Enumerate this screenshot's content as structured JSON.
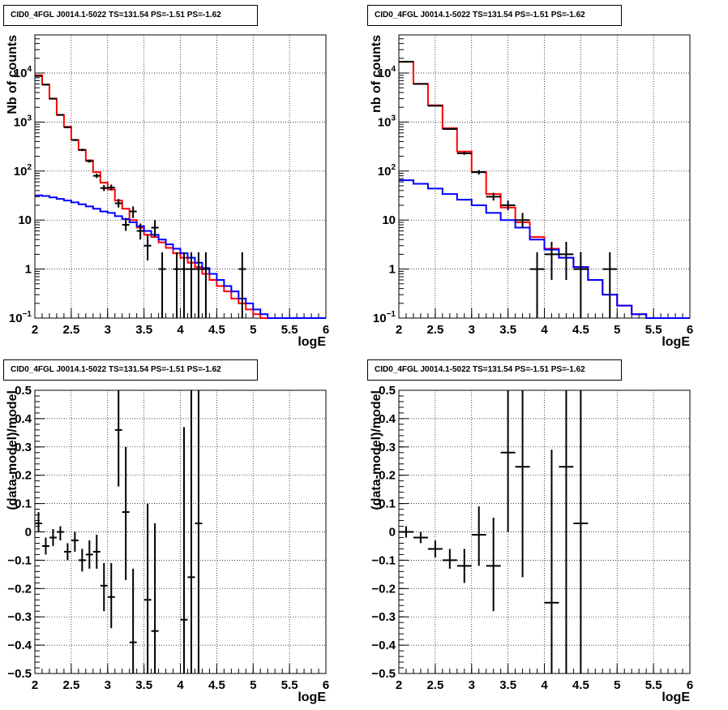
{
  "chart_data": [
    {
      "type": "line",
      "title": "CID0_4FGL J0014.1-5022 TS=131.54 PS=-1.51 PS=-1.62",
      "xlabel": "logE",
      "ylabel": "Nb of counts",
      "xlim": [
        2,
        6
      ],
      "ylim": [
        0.1,
        60000
      ],
      "y_log": true,
      "grid": true,
      "x_ticks": [
        "2",
        "2.5",
        "3",
        "3.5",
        "4",
        "4.5",
        "5",
        "5.5",
        "6"
      ],
      "y_ticks": [
        {
          "v": 0.1,
          "t": "10",
          "sup": "−1"
        },
        {
          "v": 1,
          "t": "1"
        },
        {
          "v": 10,
          "t": "10"
        },
        {
          "v": 100,
          "t": "10",
          "sup": "2"
        },
        {
          "v": 1000,
          "t": "10",
          "sup": "3"
        },
        {
          "v": 10000,
          "t": "10",
          "sup": "4"
        }
      ],
      "bin_edges": [
        2.0,
        2.1,
        2.2,
        2.3,
        2.4,
        2.5,
        2.6,
        2.7,
        2.8,
        2.9,
        3.0,
        3.1,
        3.2,
        3.3,
        3.4,
        3.5,
        3.6,
        3.7,
        3.8,
        3.9,
        4.0,
        4.1,
        4.2,
        4.3,
        4.4,
        4.5,
        4.6,
        4.7,
        4.8,
        4.9,
        5.0,
        5.1,
        5.2,
        5.3,
        5.4,
        5.5,
        5.6,
        5.7,
        5.8,
        5.9,
        6.0
      ],
      "series": [
        {
          "color": "#ff0000",
          "style": "step",
          "values": [
            9000,
            5800,
            3000,
            1400,
            800,
            430,
            270,
            165,
            95,
            58,
            42,
            25,
            17,
            10,
            7,
            5,
            4.5,
            3.5,
            2.7,
            2.1,
            1.7,
            1.35,
            1.1,
            0.8,
            0.6,
            0.45,
            0.35,
            0.25,
            0.2,
            0.15,
            0.12,
            0.1,
            0.1,
            0.1,
            0.1,
            0.1,
            0.1,
            0.1,
            0.1,
            0.1
          ]
        },
        {
          "color": "#0000ff",
          "style": "step",
          "values": [
            32,
            31,
            29,
            27,
            25,
            23,
            21,
            19,
            17,
            15,
            14,
            12,
            10.5,
            9,
            7.5,
            6,
            5,
            4,
            3.2,
            2.6,
            2.1,
            1.7,
            1.35,
            1.05,
            0.8,
            0.6,
            0.45,
            0.35,
            0.25,
            0.2,
            0.15,
            0.12,
            0.1,
            0.1,
            0.1,
            0.1,
            0.1,
            0.1,
            0.1,
            0.1
          ]
        }
      ],
      "points": [
        {
          "x": 2.05,
          "y": 8700,
          "lo": 8500,
          "hi": 8900
        },
        {
          "x": 2.15,
          "y": 5800,
          "lo": 5650,
          "hi": 5950
        },
        {
          "x": 2.25,
          "y": 3000,
          "lo": 2900,
          "hi": 3100
        },
        {
          "x": 2.35,
          "y": 1400,
          "lo": 1360,
          "hi": 1440
        },
        {
          "x": 2.45,
          "y": 780,
          "lo": 750,
          "hi": 810
        },
        {
          "x": 2.55,
          "y": 430,
          "lo": 410,
          "hi": 450
        },
        {
          "x": 2.65,
          "y": 270,
          "lo": 255,
          "hi": 285
        },
        {
          "x": 2.75,
          "y": 160,
          "lo": 148,
          "hi": 172
        },
        {
          "x": 2.85,
          "y": 80,
          "lo": 72,
          "hi": 89
        },
        {
          "x": 2.95,
          "y": 45,
          "lo": 39,
          "hi": 52
        },
        {
          "x": 3.05,
          "y": 46,
          "lo": 40,
          "hi": 53
        },
        {
          "x": 3.15,
          "y": 22,
          "lo": 18,
          "hi": 27
        },
        {
          "x": 3.25,
          "y": 8,
          "lo": 6,
          "hi": 11
        },
        {
          "x": 3.35,
          "y": 15,
          "lo": 11,
          "hi": 19
        },
        {
          "x": 3.45,
          "y": 6,
          "lo": 4,
          "hi": 8.5
        },
        {
          "x": 3.55,
          "y": 3,
          "lo": 1.5,
          "hi": 5
        },
        {
          "x": 3.65,
          "y": 7,
          "lo": 4.5,
          "hi": 10
        },
        {
          "x": 3.75,
          "y": 1,
          "lo": 0.1,
          "hi": 2.2
        },
        {
          "x": 3.95,
          "y": 1,
          "lo": 0.1,
          "hi": 2.2
        },
        {
          "x": 4.05,
          "y": 1,
          "lo": 0.1,
          "hi": 2.2
        },
        {
          "x": 4.15,
          "y": 1,
          "lo": 0.1,
          "hi": 2.2
        },
        {
          "x": 4.25,
          "y": 1,
          "lo": 0.1,
          "hi": 2.2
        },
        {
          "x": 4.35,
          "y": 1,
          "lo": 0.1,
          "hi": 2.2
        },
        {
          "x": 4.85,
          "y": 1,
          "lo": 0.1,
          "hi": 2.2
        }
      ],
      "x_half_width": 0.05
    },
    {
      "type": "line",
      "title": "CID0_4FGL J0014.1-5022 TS=131.54 PS=-1.51 PS=-1.62",
      "xlabel": "logE",
      "ylabel": "nb of counts",
      "xlim": [
        2,
        6
      ],
      "ylim": [
        0.1,
        60000
      ],
      "y_log": true,
      "grid": true,
      "x_ticks": [
        "2",
        "2.5",
        "3",
        "3.5",
        "4",
        "4.5",
        "5",
        "5.5",
        "6"
      ],
      "y_ticks": [
        {
          "v": 0.1,
          "t": "10",
          "sup": "−1"
        },
        {
          "v": 1,
          "t": "1"
        },
        {
          "v": 10,
          "t": "10"
        },
        {
          "v": 100,
          "t": "10",
          "sup": "2"
        },
        {
          "v": 1000,
          "t": "10",
          "sup": "3"
        },
        {
          "v": 10000,
          "t": "10",
          "sup": "4"
        }
      ],
      "bin_edges": [
        2.0,
        2.2,
        2.4,
        2.6,
        2.8,
        3.0,
        3.2,
        3.4,
        3.6,
        3.8,
        4.0,
        4.2,
        4.4,
        4.6,
        4.8,
        5.0,
        5.2,
        5.4,
        5.6,
        5.8,
        6.0
      ],
      "series": [
        {
          "color": "#ff0000",
          "style": "step",
          "values": [
            17000,
            6000,
            2200,
            750,
            250,
            95,
            34,
            18,
            9,
            4.5,
            2.6,
            1.7,
            1.1,
            0.6,
            0.3,
            0.18,
            0.12,
            0.1,
            0.1,
            0.1
          ]
        },
        {
          "color": "#0000ff",
          "style": "step",
          "values": [
            65,
            55,
            44,
            34,
            26,
            20,
            14,
            10,
            7,
            4,
            2.5,
            1.7,
            1.1,
            0.6,
            0.3,
            0.18,
            0.12,
            0.1,
            0.1,
            0.1
          ]
        }
      ],
      "points": [
        {
          "x": 2.1,
          "y": 17000,
          "lo": 16800,
          "hi": 17200
        },
        {
          "x": 2.3,
          "y": 6000,
          "lo": 5900,
          "hi": 6100
        },
        {
          "x": 2.5,
          "y": 2150,
          "lo": 2100,
          "hi": 2200
        },
        {
          "x": 2.7,
          "y": 720,
          "lo": 700,
          "hi": 745
        },
        {
          "x": 2.9,
          "y": 230,
          "lo": 215,
          "hi": 245
        },
        {
          "x": 3.1,
          "y": 95,
          "lo": 85,
          "hi": 105
        },
        {
          "x": 3.3,
          "y": 30,
          "lo": 25,
          "hi": 36
        },
        {
          "x": 3.5,
          "y": 20,
          "lo": 16,
          "hi": 25
        },
        {
          "x": 3.7,
          "y": 10,
          "lo": 7,
          "hi": 14
        },
        {
          "x": 3.9,
          "y": 1,
          "lo": 0.1,
          "hi": 2.2
        },
        {
          "x": 4.1,
          "y": 2,
          "lo": 0.6,
          "hi": 3.6
        },
        {
          "x": 4.3,
          "y": 2,
          "lo": 0.6,
          "hi": 3.6
        },
        {
          "x": 4.5,
          "y": 1,
          "lo": 0.1,
          "hi": 2.2
        },
        {
          "x": 4.9,
          "y": 1,
          "lo": 0.1,
          "hi": 2.2
        }
      ],
      "x_half_width": 0.1
    },
    {
      "type": "scatter",
      "title": "CID0_4FGL J0014.1-5022 TS=131.54 PS=-1.51 PS=-1.62",
      "xlabel": "logE",
      "ylabel": "(data-model)/model",
      "xlim": [
        2,
        6
      ],
      "ylim": [
        -0.5,
        0.5
      ],
      "y_log": false,
      "grid": true,
      "x_ticks": [
        "2",
        "2.5",
        "3",
        "3.5",
        "4",
        "4.5",
        "5",
        "5.5",
        "6"
      ],
      "y_ticks": [
        {
          "v": -0.5,
          "t": "−0.5"
        },
        {
          "v": -0.4,
          "t": "−0.4"
        },
        {
          "v": -0.3,
          "t": "−0.3"
        },
        {
          "v": -0.2,
          "t": "−0.2"
        },
        {
          "v": -0.1,
          "t": "−0.1"
        },
        {
          "v": 0,
          "t": "0"
        },
        {
          "v": 0.1,
          "t": "0.1"
        },
        {
          "v": 0.2,
          "t": "0.2"
        },
        {
          "v": 0.3,
          "t": "0.3"
        },
        {
          "v": 0.4,
          "t": "0.4"
        },
        {
          "v": 0.5,
          "t": "0.5"
        }
      ],
      "points": [
        {
          "x": 2.05,
          "y": 0.03,
          "lo": 0.0,
          "hi": 0.07
        },
        {
          "x": 2.15,
          "y": -0.05,
          "lo": -0.08,
          "hi": -0.02
        },
        {
          "x": 2.25,
          "y": -0.02,
          "lo": -0.05,
          "hi": 0.01
        },
        {
          "x": 2.35,
          "y": 0.0,
          "lo": -0.03,
          "hi": 0.02
        },
        {
          "x": 2.45,
          "y": -0.07,
          "lo": -0.1,
          "hi": -0.04
        },
        {
          "x": 2.55,
          "y": -0.03,
          "lo": -0.07,
          "hi": 0.0
        },
        {
          "x": 2.65,
          "y": -0.1,
          "lo": -0.14,
          "hi": -0.06
        },
        {
          "x": 2.75,
          "y": -0.08,
          "lo": -0.13,
          "hi": -0.03
        },
        {
          "x": 2.85,
          "y": -0.07,
          "lo": -0.13,
          "hi": -0.01
        },
        {
          "x": 2.95,
          "y": -0.19,
          "lo": -0.28,
          "hi": -0.11
        },
        {
          "x": 3.05,
          "y": -0.23,
          "lo": -0.34,
          "hi": -0.11
        },
        {
          "x": 3.15,
          "y": 0.36,
          "lo": 0.16,
          "hi": 0.5
        },
        {
          "x": 3.25,
          "y": 0.07,
          "lo": -0.17,
          "hi": 0.3
        },
        {
          "x": 3.35,
          "y": -0.39,
          "lo": -0.5,
          "hi": -0.13
        },
        {
          "x": 3.55,
          "y": -0.24,
          "lo": -0.5,
          "hi": 0.1
        },
        {
          "x": 3.65,
          "y": -0.35,
          "lo": -0.5,
          "hi": 0.03
        },
        {
          "x": 4.05,
          "y": -0.31,
          "lo": -0.5,
          "hi": 0.37
        },
        {
          "x": 4.15,
          "y": -0.16,
          "lo": -0.5,
          "hi": 0.5
        },
        {
          "x": 4.25,
          "y": 0.03,
          "lo": -0.5,
          "hi": 0.5
        }
      ],
      "x_half_width": 0.05
    },
    {
      "type": "scatter",
      "title": "CID0_4FGL J0014.1-5022 TS=131.54 PS=-1.51 PS=-1.62",
      "xlabel": "logE",
      "ylabel": "(data-model)/model",
      "xlim": [
        2,
        6
      ],
      "ylim": [
        -0.5,
        0.5
      ],
      "y_log": false,
      "grid": true,
      "x_ticks": [
        "2",
        "2.5",
        "3",
        "3.5",
        "4",
        "4.5",
        "5",
        "5.5",
        "6"
      ],
      "y_ticks": [
        {
          "v": -0.5,
          "t": "−0.5"
        },
        {
          "v": -0.4,
          "t": "−0.4"
        },
        {
          "v": -0.3,
          "t": "−0.3"
        },
        {
          "v": -0.2,
          "t": "−0.2"
        },
        {
          "v": -0.1,
          "t": "−0.1"
        },
        {
          "v": 0,
          "t": "0"
        },
        {
          "v": 0.1,
          "t": "0.1"
        },
        {
          "v": 0.2,
          "t": "0.2"
        },
        {
          "v": 0.3,
          "t": "0.3"
        },
        {
          "v": 0.4,
          "t": "0.4"
        },
        {
          "v": 0.5,
          "t": "0.5"
        }
      ],
      "points": [
        {
          "x": 2.1,
          "y": 0.0,
          "lo": -0.02,
          "hi": 0.02
        },
        {
          "x": 2.3,
          "y": -0.02,
          "lo": -0.04,
          "hi": 0.0
        },
        {
          "x": 2.5,
          "y": -0.06,
          "lo": -0.09,
          "hi": -0.03
        },
        {
          "x": 2.7,
          "y": -0.1,
          "lo": -0.13,
          "hi": -0.06
        },
        {
          "x": 2.9,
          "y": -0.12,
          "lo": -0.18,
          "hi": -0.06
        },
        {
          "x": 3.1,
          "y": -0.01,
          "lo": -0.12,
          "hi": 0.09
        },
        {
          "x": 3.3,
          "y": -0.12,
          "lo": -0.28,
          "hi": 0.05
        },
        {
          "x": 3.5,
          "y": 0.28,
          "lo": 0.0,
          "hi": 0.5
        },
        {
          "x": 3.7,
          "y": 0.23,
          "lo": -0.16,
          "hi": 0.5
        },
        {
          "x": 4.1,
          "y": -0.25,
          "lo": -0.5,
          "hi": 0.29
        },
        {
          "x": 4.3,
          "y": 0.23,
          "lo": -0.5,
          "hi": 0.5
        },
        {
          "x": 4.5,
          "y": 0.03,
          "lo": -0.5,
          "hi": 0.5
        }
      ],
      "x_half_width": 0.1
    }
  ]
}
